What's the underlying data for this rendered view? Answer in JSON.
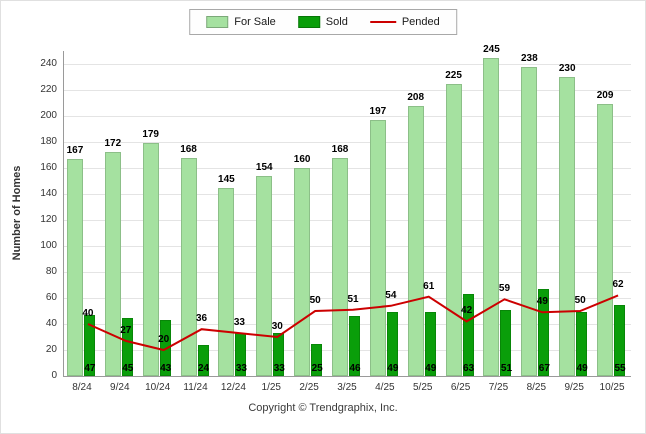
{
  "legend": {
    "items": [
      {
        "label": "For Sale"
      },
      {
        "label": "Sold"
      },
      {
        "label": "Pended"
      }
    ]
  },
  "footer": {
    "text": "Copyright © Trendgraphix, Inc."
  },
  "colors": {
    "for_sale": "#A5E1A0",
    "sold": "#0A9E0A",
    "pended": "#CC0000"
  },
  "chart_data": {
    "type": "bar",
    "title": "",
    "xlabel": "",
    "ylabel": "Number of Homes",
    "categories": [
      "8/24",
      "9/24",
      "10/24",
      "11/24",
      "12/24",
      "1/25",
      "2/25",
      "3/25",
      "4/25",
      "5/25",
      "6/25",
      "7/25",
      "8/25",
      "9/25",
      "10/25"
    ],
    "series": [
      {
        "name": "For Sale",
        "type": "bar",
        "values": [
          167,
          172,
          179,
          168,
          145,
          154,
          160,
          168,
          197,
          208,
          225,
          245,
          238,
          230,
          209
        ]
      },
      {
        "name": "Sold",
        "type": "bar",
        "values": [
          47,
          45,
          43,
          24,
          33,
          33,
          25,
          46,
          49,
          49,
          63,
          51,
          67,
          49,
          55
        ]
      },
      {
        "name": "Pended",
        "type": "line",
        "values": [
          40,
          27,
          20,
          36,
          33,
          30,
          50,
          51,
          54,
          61,
          42,
          59,
          49,
          50,
          62
        ]
      }
    ],
    "ylim": [
      0,
      250
    ],
    "yticks": [
      0,
      20,
      40,
      60,
      80,
      100,
      120,
      140,
      160,
      180,
      200,
      220,
      240
    ],
    "grid": true,
    "legend_position": "top"
  }
}
